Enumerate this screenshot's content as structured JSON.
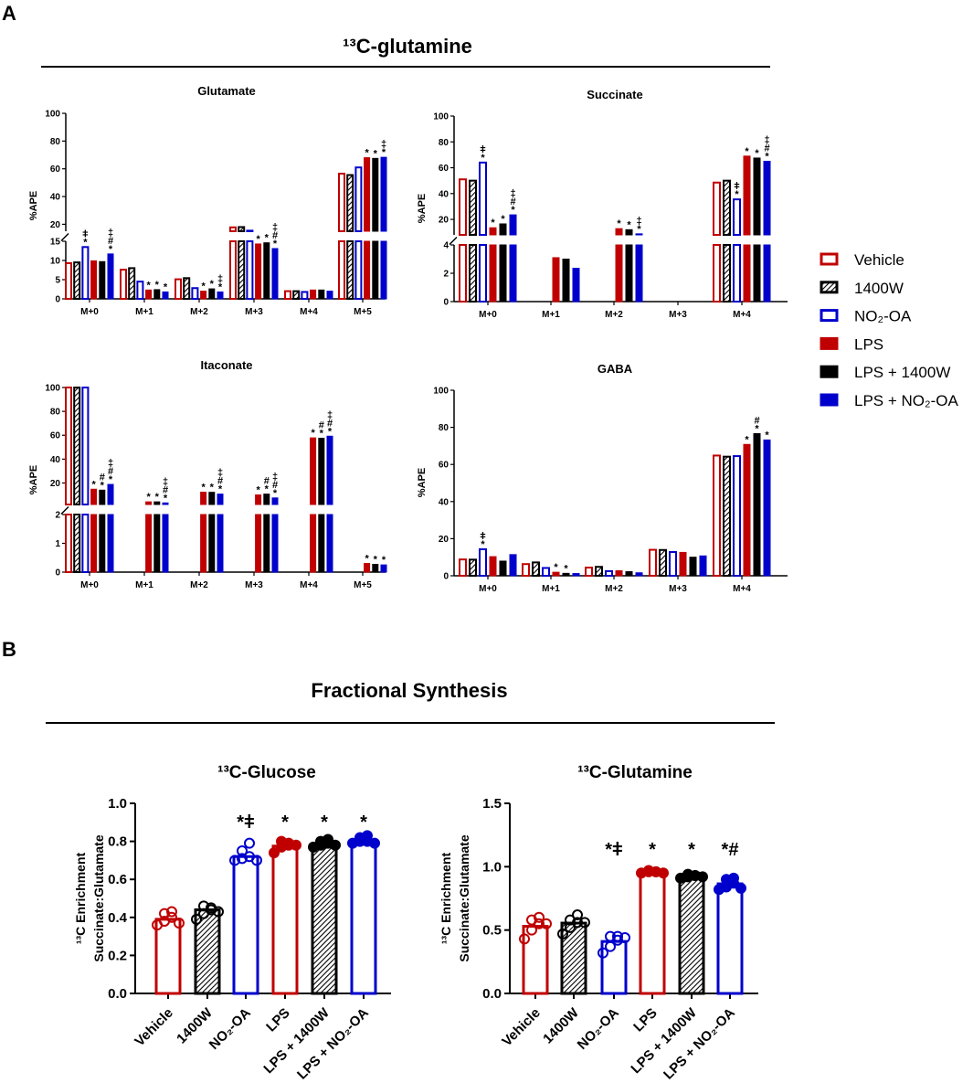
{
  "panels": {
    "a": "A",
    "b": "B"
  },
  "section_a_title": "¹³C-glutamine",
  "section_b_title": "Fractional Synthesis",
  "legend": {
    "items": [
      {
        "label": "Vehicle",
        "style": "outline",
        "color": "#c00000"
      },
      {
        "label": "1400W",
        "style": "hatched",
        "color": "#000000"
      },
      {
        "label": "NO₂-OA",
        "style": "outline",
        "color": "#0000cc"
      },
      {
        "label": "LPS",
        "style": "filled",
        "color": "#c00000"
      },
      {
        "label": "LPS + 1400W",
        "style": "filled",
        "color": "#000000"
      },
      {
        "label": "LPS + NO₂-OA",
        "style": "filled",
        "color": "#0000cc"
      }
    ]
  },
  "chart_data": [
    {
      "id": "glutamate",
      "type": "bar",
      "title": "Glutamate",
      "ylabel": "%APE",
      "categories": [
        "M+0",
        "M+1",
        "M+2",
        "M+3",
        "M+4",
        "M+5"
      ],
      "yticks": [
        "0",
        "5",
        "10",
        "15",
        "20",
        "40",
        "60",
        "80",
        "100"
      ],
      "y_break": [
        15,
        15
      ],
      "series": [
        {
          "name": "Vehicle",
          "values": [
            9.3,
            7.6,
            5.1,
            17.8,
            2.0,
            56.5
          ]
        },
        {
          "name": "1400W",
          "values": [
            9.5,
            8.0,
            5.4,
            18.0,
            2.0,
            55.5
          ]
        },
        {
          "name": "NO₂-OA",
          "values": [
            13.5,
            4.5,
            2.8,
            15.4,
            1.8,
            61.0
          ]
        },
        {
          "name": "LPS",
          "values": [
            9.9,
            2.3,
            2.0,
            14.3,
            2.3,
            68.0
          ]
        },
        {
          "name": "LPS + 1400W",
          "values": [
            9.7,
            2.4,
            2.6,
            14.6,
            2.3,
            67.5
          ]
        },
        {
          "name": "LPS + NO₂-OA",
          "values": [
            11.7,
            1.8,
            1.8,
            13.1,
            2.0,
            68.3
          ]
        }
      ],
      "annotations": [
        {
          "cat": 0,
          "series": 2,
          "marks": [
            "*",
            "ǂ"
          ]
        },
        {
          "cat": 0,
          "series": 5,
          "marks": [
            "*",
            "#",
            "‡"
          ]
        },
        {
          "cat": 1,
          "series": 3,
          "marks": [
            "*"
          ]
        },
        {
          "cat": 1,
          "series": 4,
          "marks": [
            "*"
          ]
        },
        {
          "cat": 1,
          "series": 5,
          "marks": [
            "*"
          ]
        },
        {
          "cat": 2,
          "series": 3,
          "marks": [
            "*"
          ]
        },
        {
          "cat": 2,
          "series": 4,
          "marks": [
            "*"
          ]
        },
        {
          "cat": 2,
          "series": 5,
          "marks": [
            "*",
            "‡"
          ]
        },
        {
          "cat": 3,
          "series": 3,
          "marks": [
            "*"
          ]
        },
        {
          "cat": 3,
          "series": 4,
          "marks": [
            "*"
          ]
        },
        {
          "cat": 3,
          "series": 5,
          "marks": [
            "*",
            "#",
            "‡"
          ]
        },
        {
          "cat": 5,
          "series": 3,
          "marks": [
            "*"
          ]
        },
        {
          "cat": 5,
          "series": 4,
          "marks": [
            "*"
          ]
        },
        {
          "cat": 5,
          "series": 5,
          "marks": [
            "*",
            "‡"
          ]
        }
      ]
    },
    {
      "id": "succinate",
      "type": "bar",
      "title": "Succinate",
      "ylabel": "%APE",
      "categories": [
        "M+0",
        "M+1",
        "M+2",
        "M+3",
        "M+4"
      ],
      "yticks": [
        "0",
        "2",
        "4",
        "20",
        "40",
        "60",
        "80",
        "100"
      ],
      "y_break": [
        4,
        8
      ],
      "series": [
        {
          "name": "Vehicle",
          "values": [
            51,
            null,
            null,
            null,
            48.5
          ]
        },
        {
          "name": "1400W",
          "values": [
            50,
            null,
            null,
            null,
            50
          ]
        },
        {
          "name": "NO₂-OA",
          "values": [
            64,
            null,
            null,
            null,
            35.5
          ]
        },
        {
          "name": "LPS",
          "values": [
            13.5,
            3.1,
            12.8,
            null,
            69
          ]
        },
        {
          "name": "LPS + 1400W",
          "values": [
            16.5,
            3.0,
            12.0,
            null,
            67.5
          ]
        },
        {
          "name": "LPS + NO₂-OA",
          "values": [
            23.5,
            2.35,
            8.8,
            null,
            65
          ]
        }
      ],
      "annotations": [
        {
          "cat": 0,
          "series": 2,
          "marks": [
            "*",
            "ǂ"
          ]
        },
        {
          "cat": 0,
          "series": 3,
          "marks": [
            "*"
          ]
        },
        {
          "cat": 0,
          "series": 4,
          "marks": [
            "*"
          ]
        },
        {
          "cat": 0,
          "series": 5,
          "marks": [
            "*",
            "#",
            "‡"
          ]
        },
        {
          "cat": 2,
          "series": 3,
          "marks": [
            "*"
          ]
        },
        {
          "cat": 2,
          "series": 4,
          "marks": [
            "*"
          ]
        },
        {
          "cat": 2,
          "series": 5,
          "marks": [
            "*",
            "‡"
          ]
        },
        {
          "cat": 4,
          "series": 2,
          "marks": [
            "*",
            "ǂ"
          ]
        },
        {
          "cat": 4,
          "series": 3,
          "marks": [
            "*"
          ]
        },
        {
          "cat": 4,
          "series": 4,
          "marks": [
            "*"
          ]
        },
        {
          "cat": 4,
          "series": 5,
          "marks": [
            "*",
            "#",
            "‡"
          ]
        }
      ]
    },
    {
      "id": "itaconate",
      "type": "bar",
      "title": "Itaconate",
      "ylabel": "%APE",
      "categories": [
        "M+0",
        "M+1",
        "M+2",
        "M+3",
        "M+4",
        "M+5"
      ],
      "yticks": [
        "0",
        "1",
        "2",
        "20",
        "40",
        "60",
        "80",
        "100"
      ],
      "y_break": [
        2,
        2
      ],
      "series": [
        {
          "name": "Vehicle",
          "values": [
            100,
            null,
            null,
            null,
            null,
            null
          ]
        },
        {
          "name": "1400W",
          "values": [
            100,
            null,
            null,
            null,
            null,
            null
          ]
        },
        {
          "name": "NO₂-OA",
          "values": [
            100,
            null,
            null,
            null,
            null,
            null
          ]
        },
        {
          "name": "LPS",
          "values": [
            14.8,
            4.2,
            12.3,
            10.0,
            57.8,
            0.3
          ]
        },
        {
          "name": "LPS + 1400W",
          "values": [
            14.0,
            4.2,
            12.2,
            10.7,
            57.5,
            0.27
          ]
        },
        {
          "name": "LPS + NO₂-OA",
          "values": [
            18.8,
            3.3,
            10.7,
            7.5,
            59.2,
            0.25
          ]
        }
      ],
      "annotations": [
        {
          "cat": 0,
          "series": 3,
          "marks": [
            "*"
          ]
        },
        {
          "cat": 0,
          "series": 4,
          "marks": [
            "*",
            "#"
          ]
        },
        {
          "cat": 0,
          "series": 5,
          "marks": [
            "*",
            "#",
            "‡"
          ]
        },
        {
          "cat": 1,
          "series": 3,
          "marks": [
            "*"
          ]
        },
        {
          "cat": 1,
          "series": 4,
          "marks": [
            "*"
          ]
        },
        {
          "cat": 1,
          "series": 5,
          "marks": [
            "*",
            "#",
            "‡"
          ]
        },
        {
          "cat": 2,
          "series": 3,
          "marks": [
            "*"
          ]
        },
        {
          "cat": 2,
          "series": 4,
          "marks": [
            "*"
          ]
        },
        {
          "cat": 2,
          "series": 5,
          "marks": [
            "*",
            "#",
            "‡"
          ]
        },
        {
          "cat": 3,
          "series": 3,
          "marks": [
            "*"
          ]
        },
        {
          "cat": 3,
          "series": 4,
          "marks": [
            "*",
            "#"
          ]
        },
        {
          "cat": 3,
          "series": 5,
          "marks": [
            "*",
            "#",
            "‡"
          ]
        },
        {
          "cat": 4,
          "series": 3,
          "marks": [
            "*"
          ]
        },
        {
          "cat": 4,
          "series": 4,
          "marks": [
            "*",
            "#"
          ]
        },
        {
          "cat": 4,
          "series": 5,
          "marks": [
            "*",
            "#",
            "‡"
          ]
        },
        {
          "cat": 5,
          "series": 3,
          "marks": [
            "*"
          ]
        },
        {
          "cat": 5,
          "series": 4,
          "marks": [
            "*"
          ]
        },
        {
          "cat": 5,
          "series": 5,
          "marks": [
            "*"
          ]
        }
      ]
    },
    {
      "id": "gaba",
      "type": "bar",
      "title": "GABA",
      "ylabel": "%APE",
      "categories": [
        "M+0",
        "M+1",
        "M+2",
        "M+3",
        "M+4"
      ],
      "yticks": [
        "0",
        "20",
        "40",
        "60",
        "80",
        "100"
      ],
      "y_break": null,
      "series": [
        {
          "name": "Vehicle",
          "values": [
            8.8,
            6.3,
            4.4,
            14.0,
            64.8
          ]
        },
        {
          "name": "1400W",
          "values": [
            8.7,
            7.2,
            4.8,
            13.9,
            64.2
          ]
        },
        {
          "name": "NO₂-OA",
          "values": [
            14.3,
            4.2,
            2.5,
            12.8,
            64.5
          ]
        },
        {
          "name": "LPS",
          "values": [
            10.3,
            1.9,
            2.7,
            12.6,
            70.8
          ]
        },
        {
          "name": "LPS + 1400W",
          "values": [
            7.9,
            1.3,
            2.2,
            10.0,
            76.6
          ]
        },
        {
          "name": "LPS + NO₂-OA",
          "values": [
            11.4,
            1.2,
            1.6,
            10.7,
            73.2
          ]
        }
      ],
      "annotations": [
        {
          "cat": 0,
          "series": 2,
          "marks": [
            "*",
            "ǂ"
          ]
        },
        {
          "cat": 1,
          "series": 3,
          "marks": [
            "*"
          ]
        },
        {
          "cat": 1,
          "series": 4,
          "marks": [
            "*"
          ]
        },
        {
          "cat": 4,
          "series": 3,
          "marks": [
            "*"
          ]
        },
        {
          "cat": 4,
          "series": 4,
          "marks": [
            "*",
            "#"
          ]
        },
        {
          "cat": 4,
          "series": 5,
          "marks": [
            "*"
          ]
        }
      ]
    },
    {
      "id": "fs_glucose",
      "type": "bar",
      "title": "¹³C-Glucose",
      "ylabel": [
        "¹³C Enrichment",
        "Succinate:Glutamate"
      ],
      "categories": [
        "Vehicle",
        "1400W",
        "NO₂-OA",
        "LPS",
        "LPS + 1400W",
        "LPS + NO₂-OA"
      ],
      "yticks": [
        "0.0",
        "0.2",
        "0.4",
        "0.6",
        "0.8",
        "1.0"
      ],
      "ylim": [
        0,
        1.0
      ],
      "values": [
        0.39,
        0.44,
        0.72,
        0.775,
        0.785,
        0.8
      ],
      "points": [
        [
          0.36,
          0.38,
          0.4,
          0.42,
          0.43,
          0.37
        ],
        [
          0.39,
          0.42,
          0.44,
          0.46,
          0.45,
          0.43
        ],
        [
          0.7,
          0.71,
          0.72,
          0.75,
          0.79,
          0.7
        ],
        [
          0.74,
          0.77,
          0.78,
          0.8,
          0.79,
          0.78
        ],
        [
          0.77,
          0.78,
          0.79,
          0.8,
          0.81,
          0.78
        ],
        [
          0.79,
          0.8,
          0.8,
          0.82,
          0.83,
          0.79
        ]
      ],
      "annotations": [
        "",
        "",
        "*ǂ",
        "*",
        "*",
        "*"
      ]
    },
    {
      "id": "fs_glutamine",
      "type": "bar",
      "title": "¹³C-Glutamine",
      "ylabel": [
        "¹³C Enrichment",
        "Succinate:Glutamate"
      ],
      "categories": [
        "Vehicle",
        "1400W",
        "NO₂-OA",
        "LPS",
        "LPS + 1400W",
        "LPS + NO₂-OA"
      ],
      "yticks": [
        "0.0",
        "0.5",
        "1.0",
        "1.5"
      ],
      "ylim": [
        0,
        1.5
      ],
      "values": [
        0.53,
        0.555,
        0.41,
        0.96,
        0.925,
        0.865
      ],
      "points": [
        [
          0.43,
          0.5,
          0.55,
          0.58,
          0.6,
          0.55
        ],
        [
          0.47,
          0.52,
          0.56,
          0.58,
          0.62,
          0.56
        ],
        [
          0.32,
          0.37,
          0.42,
          0.45,
          0.45,
          0.44
        ],
        [
          0.95,
          0.96,
          0.96,
          0.97,
          0.96,
          0.95
        ],
        [
          0.91,
          0.92,
          0.93,
          0.94,
          0.93,
          0.92
        ],
        [
          0.82,
          0.84,
          0.87,
          0.9,
          0.91,
          0.83
        ]
      ],
      "annotations": [
        "",
        "",
        "*ǂ",
        "*",
        "*",
        "*#"
      ]
    }
  ]
}
